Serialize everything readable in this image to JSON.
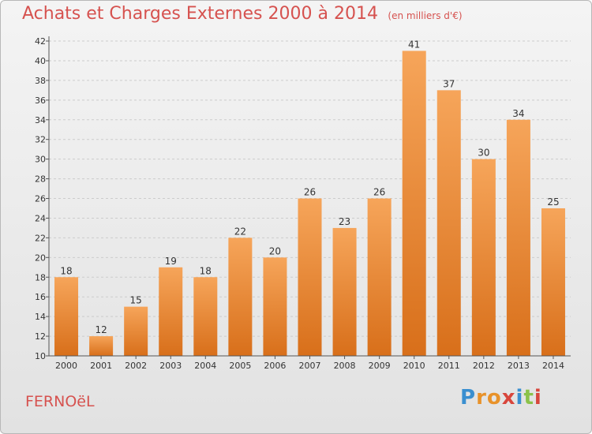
{
  "header": {
    "title": "Achats et Charges Externes 2000 à 2014",
    "subtitle": "(en milliers d'€)"
  },
  "footer": {
    "commune": "FERNOëL",
    "logo_text": "Proxiti",
    "logo_colors": [
      "#3a8fd0",
      "#e8922a",
      "#e8922a",
      "#d8463c",
      "#3a8fd0",
      "#8bc24a",
      "#d8463c"
    ]
  },
  "colors": {
    "bar_top": "#f6a55a",
    "bar_bottom": "#d86f1a",
    "title": "#d6524f",
    "grid": "#cccccc",
    "axis": "#555555"
  },
  "chart_data": {
    "type": "bar",
    "title": "Achats et Charges Externes 2000 à 2014",
    "subtitle": "(en milliers d'€)",
    "categories": [
      "2000",
      "2001",
      "2002",
      "2003",
      "2004",
      "2005",
      "2006",
      "2007",
      "2008",
      "2009",
      "2010",
      "2011",
      "2012",
      "2013",
      "2014"
    ],
    "values": [
      18,
      12,
      15,
      19,
      18,
      22,
      20,
      26,
      23,
      26,
      41,
      37,
      30,
      34,
      25
    ],
    "ylim": [
      10,
      42
    ],
    "yticks": [
      10,
      12,
      14,
      16,
      18,
      20,
      22,
      24,
      26,
      28,
      30,
      32,
      34,
      36,
      38,
      40,
      42
    ],
    "grid": true,
    "data_labels": true,
    "legend": "none"
  }
}
